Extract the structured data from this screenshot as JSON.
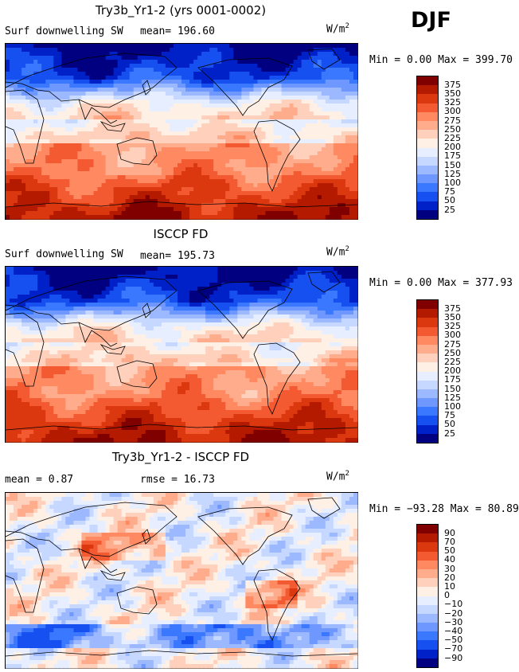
{
  "season": "DJF",
  "panels": [
    {
      "title": "Try3b_Yr1-2 (yrs 0001-0002)",
      "left_label": "Surf downwelling SW",
      "mean_text": "mean= 196.60",
      "units_base": "W/m",
      "units_exp": "2",
      "minmax": "Min =   0.00 Max = 399.70",
      "type": "abs"
    },
    {
      "title": "ISCCP FD",
      "left_label": "Surf downwelling SW",
      "mean_text": "mean= 195.73",
      "units_base": "W/m",
      "units_exp": "2",
      "minmax": "Min =   0.00 Max = 377.93",
      "type": "abs"
    },
    {
      "title": "Try3b_Yr1-2 - ISCCP FD",
      "left_label": "mean =  0.87",
      "mean_text": "rmse =  16.73",
      "units_base": "W/m",
      "units_exp": "2",
      "minmax": "Min = −93.28 Max =  80.89",
      "type": "diff"
    }
  ],
  "chart_data": [
    {
      "type": "heatmap",
      "title": "Try3b_Yr1-2 (yrs 0001-0002)",
      "variable": "Surf downwelling SW",
      "units": "W/m2",
      "mean": 196.6,
      "min": 0.0,
      "max": 399.7,
      "levels": [
        25,
        50,
        75,
        100,
        125,
        150,
        175,
        200,
        225,
        250,
        275,
        300,
        325,
        350,
        375
      ],
      "colors": [
        "#000080",
        "#0020c8",
        "#1650f0",
        "#3a78ff",
        "#6e98ff",
        "#9cb8ff",
        "#c6d8ff",
        "#e6eeff",
        "#fff0e6",
        "#ffd0bc",
        "#ffac8c",
        "#ff8a62",
        "#f45a32",
        "#dc3810",
        "#b41a00",
        "#800000"
      ]
    },
    {
      "type": "heatmap",
      "title": "ISCCP FD",
      "variable": "Surf downwelling SW",
      "units": "W/m2",
      "mean": 195.73,
      "min": 0.0,
      "max": 377.93,
      "levels": [
        25,
        50,
        75,
        100,
        125,
        150,
        175,
        200,
        225,
        250,
        275,
        300,
        325,
        350,
        375
      ],
      "colors": [
        "#000080",
        "#0020c8",
        "#1650f0",
        "#3a78ff",
        "#6e98ff",
        "#9cb8ff",
        "#c6d8ff",
        "#e6eeff",
        "#fff0e6",
        "#ffd0bc",
        "#ffac8c",
        "#ff8a62",
        "#f45a32",
        "#dc3810",
        "#b41a00",
        "#800000"
      ]
    },
    {
      "type": "heatmap",
      "title": "Try3b_Yr1-2 - ISCCP FD",
      "units": "W/m2",
      "mean": 0.87,
      "rmse": 16.73,
      "min": -93.28,
      "max": 80.89,
      "levels": [
        -90,
        -70,
        -50,
        -40,
        -30,
        -20,
        -10,
        0,
        10,
        20,
        30,
        40,
        50,
        70,
        90
      ],
      "colors": [
        "#000080",
        "#0020c8",
        "#1650f0",
        "#3a78ff",
        "#6e98ff",
        "#9cb8ff",
        "#c6d8ff",
        "#e6eeff",
        "#fff0e6",
        "#ffd0bc",
        "#ffac8c",
        "#ff8a62",
        "#f45a32",
        "#dc3810",
        "#b41a00",
        "#800000"
      ]
    }
  ]
}
